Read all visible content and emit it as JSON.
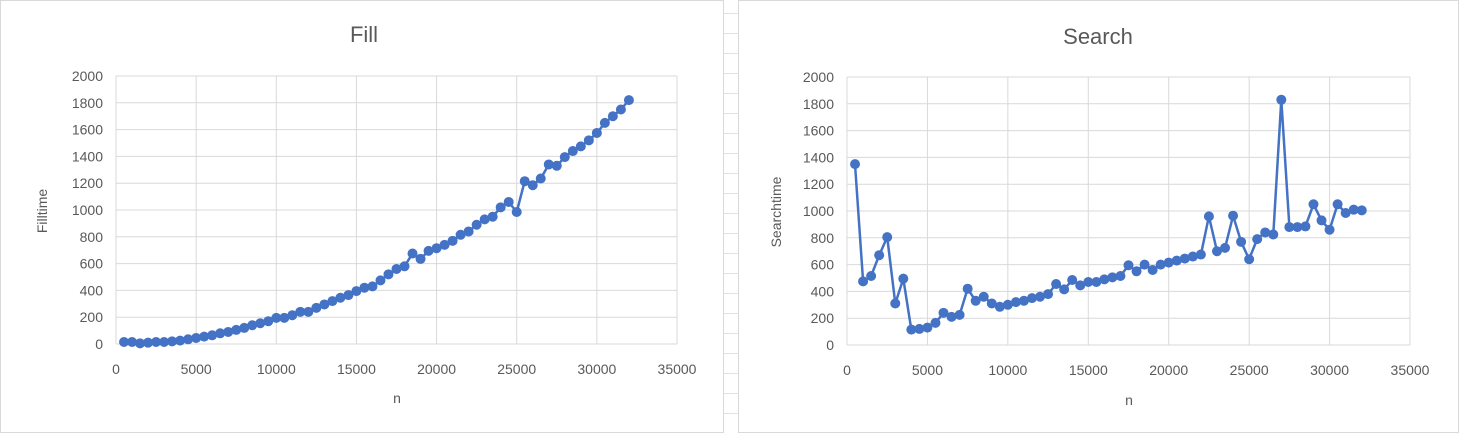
{
  "chart_data": [
    {
      "type": "line",
      "title": "Fill",
      "xlabel": "n",
      "ylabel": "Filltime",
      "xlim": [
        0,
        35000
      ],
      "ylim": [
        0,
        2000
      ],
      "x_ticks": [
        "0",
        "5000",
        "10000",
        "15000",
        "20000",
        "25000",
        "30000",
        "35000"
      ],
      "y_ticks": [
        "0",
        "200",
        "400",
        "600",
        "800",
        "1000",
        "1200",
        "1400",
        "1600",
        "1800",
        "2000"
      ],
      "grid": true,
      "legend": "none",
      "color": "#4472c4",
      "series": [
        {
          "x": [
            500,
            1000,
            1500,
            2000,
            2500,
            3000,
            3500,
            4000,
            4500,
            5000,
            5500,
            6000,
            6500,
            7000,
            7500,
            8000,
            8500,
            9000,
            9500,
            10000,
            10500,
            11000,
            11500,
            12000,
            12500,
            13000,
            13500,
            14000,
            14500,
            15000,
            15500,
            16000,
            16500,
            17000,
            17500,
            18000,
            18500,
            19000,
            19500,
            20000,
            20500,
            21000,
            21500,
            22000,
            22500,
            23000,
            23500,
            24000,
            24500,
            25000,
            25500,
            26000,
            26500,
            27000,
            27500,
            28000,
            28500,
            29000,
            29500,
            30000,
            30500,
            31000,
            31500,
            32000
          ],
          "values": [
            15,
            15,
            5,
            10,
            15,
            15,
            20,
            25,
            35,
            45,
            55,
            65,
            80,
            90,
            105,
            120,
            140,
            155,
            170,
            195,
            195,
            215,
            240,
            240,
            270,
            295,
            320,
            345,
            365,
            395,
            420,
            430,
            475,
            520,
            560,
            580,
            675,
            635,
            695,
            715,
            740,
            770,
            815,
            840,
            890,
            930,
            950,
            1020,
            1060,
            985,
            1215,
            1185,
            1235,
            1340,
            1330,
            1395,
            1440,
            1475,
            1520,
            1575,
            1650,
            1700,
            1750,
            1820
          ]
        }
      ]
    },
    {
      "type": "line",
      "title": "Search",
      "xlabel": "n",
      "ylabel": "Searchtime",
      "xlim": [
        0,
        35000
      ],
      "ylim": [
        0,
        2000
      ],
      "x_ticks": [
        "0",
        "5000",
        "10000",
        "15000",
        "20000",
        "25000",
        "30000",
        "35000"
      ],
      "y_ticks": [
        "0",
        "200",
        "400",
        "600",
        "800",
        "1000",
        "1200",
        "1400",
        "1600",
        "1800",
        "2000"
      ],
      "grid": true,
      "legend": "none",
      "color": "#4472c4",
      "series": [
        {
          "x": [
            500,
            1000,
            1500,
            2000,
            2500,
            3000,
            3500,
            4000,
            4500,
            5000,
            5500,
            6000,
            6500,
            7000,
            7500,
            8000,
            8500,
            9000,
            9500,
            10000,
            10500,
            11000,
            11500,
            12000,
            12500,
            13000,
            13500,
            14000,
            14500,
            15000,
            15500,
            16000,
            16500,
            17000,
            17500,
            18000,
            18500,
            19000,
            19500,
            20000,
            20500,
            21000,
            21500,
            22000,
            22500,
            23000,
            23500,
            24000,
            24500,
            25000,
            25500,
            26000,
            26500,
            27000,
            27500,
            28000,
            28500,
            29000,
            29500,
            30000,
            30500,
            31000,
            31500,
            32000
          ],
          "values": [
            1350,
            475,
            515,
            670,
            805,
            310,
            495,
            115,
            120,
            130,
            165,
            240,
            210,
            225,
            420,
            330,
            360,
            310,
            285,
            300,
            320,
            330,
            350,
            360,
            380,
            455,
            415,
            485,
            445,
            470,
            470,
            490,
            505,
            515,
            595,
            550,
            600,
            560,
            600,
            615,
            630,
            645,
            660,
            675,
            960,
            700,
            725,
            965,
            770,
            640,
            790,
            840,
            825,
            1830,
            880,
            880,
            885,
            1050,
            930,
            860,
            1050,
            985,
            1010,
            1005
          ]
        }
      ]
    }
  ]
}
